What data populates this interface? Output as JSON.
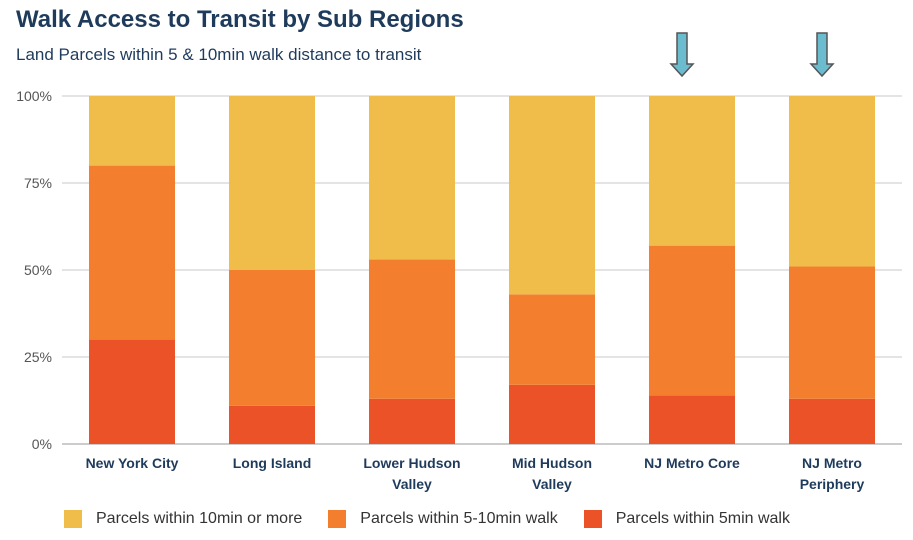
{
  "chart_data": {
    "type": "bar",
    "stacked": true,
    "title": "Walk Access to Transit by Sub Regions",
    "subtitle": "Land Parcels within 5 & 10min walk distance to transit",
    "categories": [
      [
        "New York City"
      ],
      [
        "Long Island"
      ],
      [
        "Lower Hudson",
        "Valley"
      ],
      [
        "Mid Hudson",
        "Valley"
      ],
      [
        "NJ Metro Core"
      ],
      [
        "NJ Metro",
        "Periphery"
      ]
    ],
    "series": [
      {
        "name": "Parcels within 5min walk",
        "color": "#ec5228",
        "values": [
          30,
          11,
          13,
          17,
          14,
          13
        ]
      },
      {
        "name": "Parcels within 5-10min walk",
        "color": "#f37f2e",
        "values": [
          50,
          39,
          40,
          26,
          43,
          38
        ]
      },
      {
        "name": "Parcels within 10min or more",
        "color": "#f0bd4a",
        "values": [
          20,
          50,
          47,
          57,
          43,
          49
        ]
      }
    ],
    "legend_order": [
      2,
      1,
      0
    ],
    "ylim": [
      0,
      100
    ],
    "yticks": [
      "0%",
      "25%",
      "50%",
      "75%",
      "100%"
    ],
    "grid": true,
    "legend_position": "bottom",
    "highlight_arrows": {
      "categories": [
        4,
        5
      ],
      "color": "#6bbccf"
    }
  }
}
